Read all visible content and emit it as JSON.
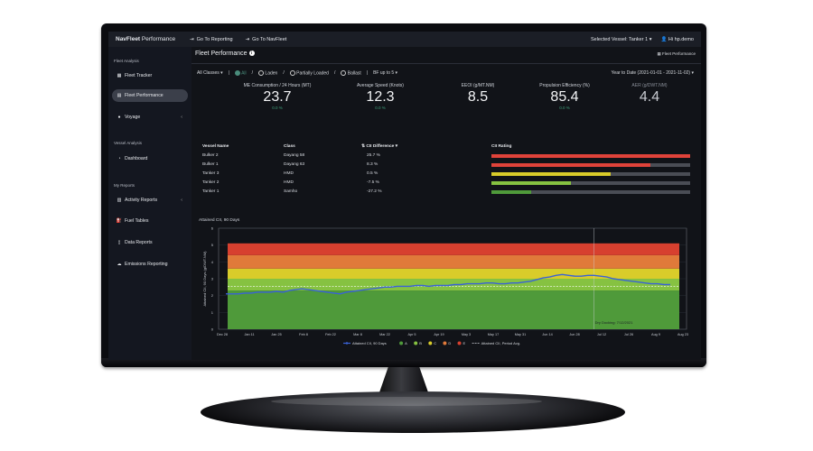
{
  "topbar": {
    "brand_bold": "NavFleet",
    "brand_rest": " Performance",
    "link1": "Go To Reporting",
    "link2": "Go To NavFleet",
    "selected_vessel": "Selected Vessel: Tanker 1",
    "user": "Hi hp.demo"
  },
  "sidebar": {
    "section1": "Fleet Analysis",
    "fleet_tracker": "Fleet Tracker",
    "fleet_performance": "Fleet Performance",
    "voyage": "Voyage",
    "section2": "Vessel Analysis",
    "dashboard": "Dashboard",
    "section3": "My Reports",
    "activity_reports": "Activity Reports",
    "fuel_tables": "Fuel Tables",
    "data_reports": "Data Reports",
    "emissions_reporting": "Emissions Reporting"
  },
  "page": {
    "title": "Fleet Performance",
    "info": "i",
    "fp_button": "Fleet Performance"
  },
  "filters": {
    "classes": "All Classes",
    "all": "All",
    "laden": "Laden",
    "partially_loaded": "Partially Loaded",
    "ballast": "Ballast",
    "bf": "BF up to 5",
    "date_range": "Year to Date (2021-01-01 - 2021-11-02)"
  },
  "kpis": [
    {
      "label": "ME Consumption / 24 Hours (MT)",
      "value": "23.7",
      "sub": "0.0 %"
    },
    {
      "label": "Average Speed (Knots)",
      "value": "12.3",
      "sub": "0.0 %"
    },
    {
      "label": "EEOI (g/MT.NM)",
      "value": "8.5",
      "sub": ""
    },
    {
      "label": "Propulsion Efficiency (%)",
      "value": "85.4",
      "sub": "0.0 %"
    },
    {
      "label": "AER (g/DWT.NM)",
      "value": "4.4",
      "sub": ""
    }
  ],
  "table": {
    "headers": {
      "vessel": "Vessel Name",
      "class": "Class",
      "cii_diff": "CII Difference",
      "cii_rating": "CII Rating"
    },
    "rows": [
      {
        "vessel": "Bulker 2",
        "class": "Dayang 58",
        "diff": "25.7 %",
        "rating": 1.0,
        "color": "#e0433a"
      },
      {
        "vessel": "Bulker 1",
        "class": "Dayang 63",
        "diff": "8.3 %",
        "rating": 0.8,
        "color": "#e0433a"
      },
      {
        "vessel": "Tanker 3",
        "class": "HMD",
        "diff": "0.5 %",
        "rating": 0.6,
        "color": "#d9cc2a"
      },
      {
        "vessel": "Tanker 2",
        "class": "HMD",
        "diff": "-7.5 %",
        "rating": 0.4,
        "color": "#86c241"
      },
      {
        "vessel": "Tanker 1",
        "class": "Samho",
        "diff": "-27.2 %",
        "rating": 0.2,
        "color": "#4f9a3a"
      }
    ]
  },
  "chart_title": "Attained CII, 90 Days",
  "chart_data": {
    "type": "line",
    "ylabel": "Attained CII, 90 Days (g/DWT.NM)",
    "ylim": [
      0,
      6
    ],
    "yticks": [
      "0",
      "1",
      "2",
      "3",
      "4",
      "5",
      "6"
    ],
    "xticks": [
      "Dec 28",
      "Jan 11",
      "Jan 25",
      "Feb 8",
      "Feb 22",
      "Mar 8",
      "Mar 22",
      "Apr 5",
      "Apr 19",
      "May 3",
      "May 17",
      "May 31",
      "Jun 14",
      "Jun 28",
      "Jul 12",
      "Jul 26",
      "Aug 9",
      "Aug 23"
    ],
    "bands": [
      {
        "name": "A",
        "from": 0,
        "to": 2.3,
        "color": "#4f9a3a"
      },
      {
        "name": "B",
        "from": 2.3,
        "to": 3.0,
        "color": "#86c241"
      },
      {
        "name": "C",
        "from": 3.0,
        "to": 3.6,
        "color": "#d9cc2a"
      },
      {
        "name": "D",
        "from": 3.6,
        "to": 4.4,
        "color": "#e07a3a"
      },
      {
        "name": "E",
        "from": 4.4,
        "to": 5.1,
        "color": "#d7402f"
      }
    ],
    "period_avg": 2.55,
    "series": [
      {
        "name": "Attained CII, 90 Days",
        "color": "#3a62d6",
        "x": [
          0,
          1,
          2,
          3,
          4,
          5,
          6,
          7,
          8,
          9,
          10,
          11,
          12,
          13,
          14,
          15,
          16,
          17,
          18,
          19,
          20,
          21,
          22,
          23,
          24,
          25,
          26,
          27,
          28,
          29,
          30,
          31,
          32,
          33,
          34,
          35,
          36,
          37,
          38,
          39,
          40,
          41,
          42,
          43,
          44,
          45,
          46,
          47,
          48,
          49,
          50,
          51,
          52,
          53,
          54,
          55,
          56,
          57,
          58,
          59,
          60,
          61,
          62,
          63,
          64,
          65,
          66,
          67,
          68,
          69,
          70
        ],
        "values": [
          2.1,
          2.1,
          2.1,
          2.15,
          2.15,
          2.2,
          2.2,
          2.2,
          2.25,
          2.2,
          2.3,
          2.35,
          2.4,
          2.35,
          2.3,
          2.25,
          2.2,
          2.15,
          2.1,
          2.2,
          2.25,
          2.3,
          2.35,
          2.4,
          2.45,
          2.5,
          2.5,
          2.55,
          2.55,
          2.55,
          2.6,
          2.6,
          2.55,
          2.6,
          2.6,
          2.6,
          2.65,
          2.65,
          2.7,
          2.7,
          2.7,
          2.75,
          2.75,
          2.7,
          2.7,
          2.75,
          2.75,
          2.8,
          2.85,
          2.95,
          3.05,
          3.1,
          3.2,
          3.25,
          3.2,
          3.15,
          3.15,
          3.2,
          3.2,
          3.15,
          3.1,
          3.0,
          2.95,
          2.9,
          2.85,
          2.8,
          2.75,
          2.7,
          2.7,
          2.65,
          2.65
        ]
      }
    ],
    "annotation": {
      "x": 58,
      "label": "Dry Docking: 7/12/2021"
    },
    "legend": [
      "Attained CII, 90 Days",
      "A",
      "B",
      "C",
      "D",
      "E",
      "Attained CII, Period Avg."
    ],
    "grid": true
  }
}
